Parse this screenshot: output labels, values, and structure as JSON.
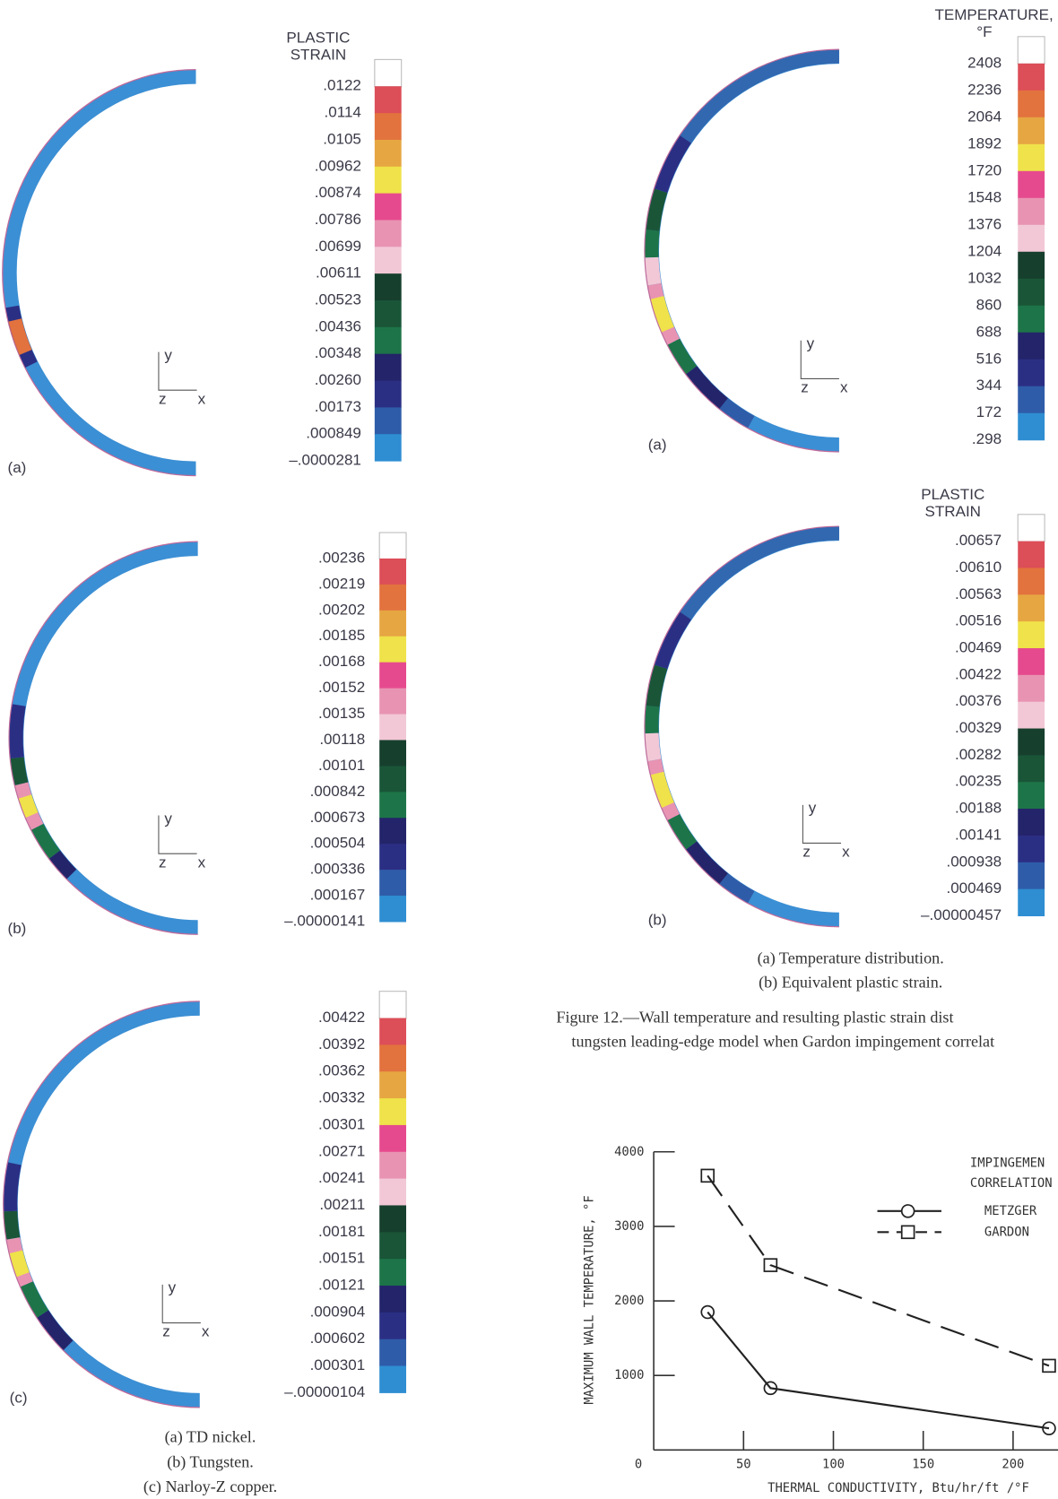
{
  "left_figure": {
    "panels": [
      {
        "label": "(a)",
        "legend_title": [
          "PLASTIC",
          "STRAIN"
        ],
        "axes": [
          "y",
          "z",
          "x"
        ],
        "levels": [
          ".0122",
          ".0114",
          ".0105",
          ".00962",
          ".00874",
          ".00786",
          ".00699",
          ".00611",
          ".00523",
          ".00436",
          ".00348",
          ".00260",
          ".00173",
          ".000849",
          "–.0000281"
        ]
      },
      {
        "label": "(b)",
        "axes": [
          "y",
          "z",
          "x"
        ],
        "levels": [
          ".00236",
          ".00219",
          ".00202",
          ".00185",
          ".00168",
          ".00152",
          ".00135",
          ".00118",
          ".00101",
          ".000842",
          ".000673",
          ".000504",
          ".000336",
          ".000167",
          "–.00000141"
        ]
      },
      {
        "label": "(c)",
        "axes": [
          "y",
          "z",
          "x"
        ],
        "levels": [
          ".00422",
          ".00392",
          ".00362",
          ".00332",
          ".00301",
          ".00271",
          ".00241",
          ".00211",
          ".00181",
          ".00151",
          ".00121",
          ".000904",
          ".000602",
          ".000301",
          "–.00000104"
        ]
      }
    ],
    "captions": [
      "(a) TD nickel.",
      "(b) Tungsten.",
      "(c) Narloy-Z copper."
    ]
  },
  "right_figure": {
    "panels": [
      {
        "label": "(a)",
        "legend_title": [
          "TEMPERATURE,",
          "°F"
        ],
        "axes": [
          "y",
          "z",
          "x"
        ],
        "levels": [
          "2408",
          "2236",
          "2064",
          "1892",
          "1720",
          "1548",
          "1376",
          "1204",
          "1032",
          "860",
          "688",
          "516",
          "344",
          "172",
          ".298"
        ]
      },
      {
        "label": "(b)",
        "legend_title": [
          "PLASTIC",
          "STRAIN"
        ],
        "axes": [
          "y",
          "z",
          "x"
        ],
        "levels": [
          ".00657",
          ".00610",
          ".00563",
          ".00516",
          ".00469",
          ".00422",
          ".00376",
          ".00329",
          ".00282",
          ".00235",
          ".00188",
          ".00141",
          ".000938",
          ".000469",
          "–.00000457"
        ]
      }
    ],
    "captions": [
      "(a) Temperature distribution.",
      "(b) Equivalent plastic strain."
    ],
    "figure_caption": [
      "Figure 12.—Wall temperature and resulting plastic strain dist",
      "tungsten leading-edge model when Gardon impingement correlat"
    ]
  },
  "chart_data": {
    "type": "line",
    "x_label": "THERMAL CONDUCTIVITY, Btu/hr/ft /°F",
    "y_label": "MAXIMUM WALL TEMPERATURE, °F",
    "legend_title": [
      "IMPINGEMEN",
      "CORRELATION"
    ],
    "x": [
      30,
      65,
      220
    ],
    "series": [
      {
        "name": "METZGER",
        "color": "#222222",
        "marker": "circle",
        "dashed": false,
        "values": [
          1850,
          830,
          290
        ]
      },
      {
        "name": "GARDON",
        "color": "#222222",
        "marker": "square",
        "dashed": true,
        "values": [
          3680,
          2480,
          1130
        ]
      }
    ],
    "xlim": [
      0,
      225
    ],
    "ylim": [
      0,
      4000
    ],
    "xticks": [
      0,
      50,
      100,
      150,
      200
    ],
    "yticks": [
      1000,
      2000,
      3000,
      4000
    ]
  }
}
